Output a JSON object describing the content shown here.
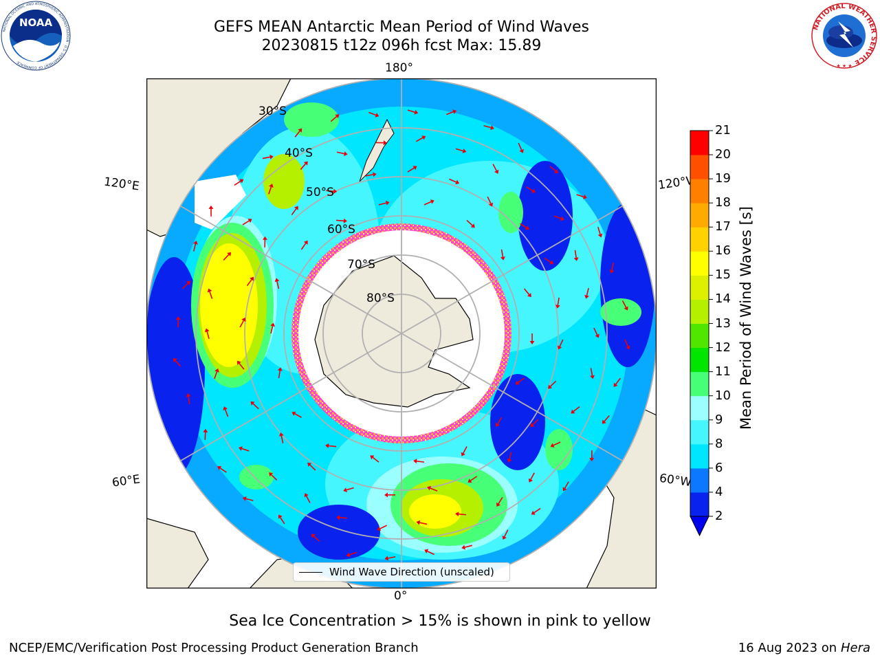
{
  "header": {
    "title_line1": "GEFS MEAN Antarctic Mean Period of Wind Waves",
    "title_line2": "20230815 t12z 096h fcst   Max: 15.89"
  },
  "logos": {
    "noaa_text": "NOAA",
    "noaa_ring_text": "NATIONAL OCEANIC AND ATMOSPHERIC ADMINISTRATION · U.S. DEPARTMENT OF COMMERCE",
    "nws_ring_text": "NATIONAL WEATHER SERVICE"
  },
  "map": {
    "longitude_labels": {
      "top": "180°",
      "bottom": "0°",
      "upper_left": "120°E",
      "upper_right": "120°W",
      "lower_left": "60°E",
      "lower_right": "60°W"
    },
    "latitude_labels": [
      "30°S",
      "40°S",
      "50°S",
      "60°S",
      "70°S",
      "80°S"
    ],
    "legend_label": "Wind Wave Direction (unscaled)",
    "land_color": "#efebdc",
    "ice_colors": [
      "#ff44cc",
      "#ffaa44",
      "#ffee66"
    ]
  },
  "colorbar": {
    "title": "Mean Period of Wind Waves [s]",
    "ticks": [
      "2",
      "4",
      "6",
      "8",
      "9",
      "10",
      "11",
      "12",
      "13",
      "14",
      "15",
      "16",
      "17",
      "18",
      "19",
      "20",
      "21"
    ],
    "colors": [
      "#0a22ee",
      "#0c78ff",
      "#00e6ff",
      "#45f6ff",
      "#9cffff",
      "#48ff78",
      "#00e600",
      "#50e600",
      "#b4f000",
      "#dcf000",
      "#ffff00",
      "#ffd200",
      "#ffaa00",
      "#ff8000",
      "#ff5000",
      "#ff0000"
    ],
    "extend_color": "#0000ee"
  },
  "notes": {
    "sea_ice": "Sea Ice Concentration > 15% is shown in pink to yellow"
  },
  "footer": {
    "left": "NCEP/EMC/Verification Post Processing Product Generation Branch",
    "date_prefix": "16 Aug 2023 on",
    "machine": "Hera"
  }
}
